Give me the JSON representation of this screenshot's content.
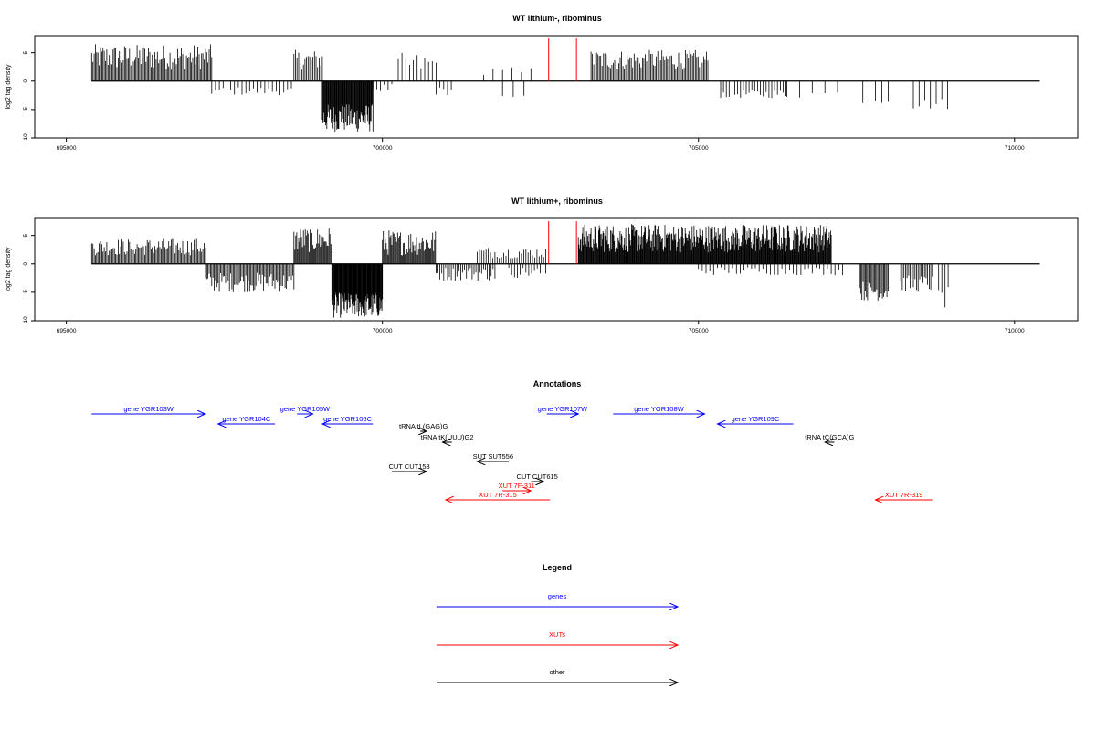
{
  "chart_data": [
    {
      "type": "bar",
      "title": "WT lithium-, ribominus",
      "ylabel": "log2 tag density",
      "xlim": [
        694500,
        711000
      ],
      "ylim": [
        -10,
        8
      ],
      "x_ticks": [
        695000,
        700000,
        705000,
        710000
      ],
      "y_ticks": [
        5,
        0,
        -5,
        -10
      ],
      "baseline": {
        "from": 695400,
        "to": 710400
      },
      "red_marks": [
        {
          "x": 702630,
          "top": 7.5
        },
        {
          "x": 703070,
          "top": 7.5
        }
      ],
      "density_segments": [
        {
          "from": 695400,
          "to": 697300,
          "min": 2,
          "max": 6.5,
          "step": 20
        },
        {
          "from": 697300,
          "to": 698600,
          "min": -2.5,
          "max": -1,
          "step": 60
        },
        {
          "from": 698600,
          "to": 699050,
          "min": 2,
          "max": 5.5,
          "step": 25
        },
        {
          "from": 699050,
          "to": 699850,
          "min": -9,
          "max": -4,
          "step": 10
        },
        {
          "from": 699850,
          "to": 700200,
          "min": -2,
          "max": -0.5,
          "step": 60
        },
        {
          "from": 700250,
          "to": 700850,
          "min": 1,
          "max": 5,
          "step": 60
        },
        {
          "from": 700850,
          "to": 701100,
          "min": -2.5,
          "max": -1,
          "step": 60
        },
        {
          "from": 701600,
          "to": 702400,
          "min": 0.5,
          "max": 2.5,
          "step": 150
        },
        {
          "from": 701900,
          "to": 702400,
          "min": -3,
          "max": -1,
          "step": 170
        },
        {
          "from": 703300,
          "to": 705150,
          "min": 2,
          "max": 5.5,
          "step": 22
        },
        {
          "from": 705350,
          "to": 706400,
          "min": -3,
          "max": -1.5,
          "step": 45
        },
        {
          "from": 706400,
          "to": 707200,
          "min": -3,
          "max": -1.5,
          "step": 200
        },
        {
          "from": 707600,
          "to": 708000,
          "min": -4,
          "max": -2,
          "step": 100
        },
        {
          "from": 708400,
          "to": 708950,
          "min": -5,
          "max": -3,
          "step": 90
        }
      ]
    },
    {
      "type": "bar",
      "title": "WT lithium+, ribominus",
      "ylabel": "log2 tag density",
      "xlim": [
        694500,
        711000
      ],
      "ylim": [
        -10,
        8
      ],
      "x_ticks": [
        695000,
        700000,
        705000,
        710000
      ],
      "y_ticks": [
        5,
        0,
        -5,
        -10
      ],
      "baseline": {
        "from": 695400,
        "to": 710400
      },
      "red_marks": [
        {
          "x": 702630,
          "top": 7.5
        },
        {
          "x": 703070,
          "top": 7.5
        }
      ],
      "density_segments": [
        {
          "from": 695400,
          "to": 697200,
          "min": 1.5,
          "max": 4.5,
          "step": 20
        },
        {
          "from": 697200,
          "to": 698600,
          "min": -5,
          "max": -1.5,
          "step": 20
        },
        {
          "from": 698600,
          "to": 699200,
          "min": 2,
          "max": 6.5,
          "step": 15
        },
        {
          "from": 699200,
          "to": 700000,
          "min": -9.5,
          "max": -5,
          "step": 8
        },
        {
          "from": 700000,
          "to": 700850,
          "min": 1.5,
          "max": 6,
          "step": 15
        },
        {
          "from": 700850,
          "to": 701800,
          "min": -3,
          "max": -0.5,
          "step": 30
        },
        {
          "from": 701500,
          "to": 702600,
          "min": 1,
          "max": 3,
          "step": 35
        },
        {
          "from": 702000,
          "to": 702600,
          "min": -2.5,
          "max": -0.5,
          "step": 45
        },
        {
          "from": 703100,
          "to": 707100,
          "min": 2,
          "max": 7,
          "step": 10
        },
        {
          "from": 705000,
          "to": 707300,
          "min": -2,
          "max": -0.5,
          "step": 60
        },
        {
          "from": 707550,
          "to": 708000,
          "min": -6.5,
          "max": -3,
          "step": 18
        },
        {
          "from": 708200,
          "to": 708700,
          "min": -5,
          "max": -2,
          "step": 25
        },
        {
          "from": 708800,
          "to": 708950,
          "min": -8,
          "max": -4,
          "step": 50
        }
      ]
    }
  ],
  "annotations": {
    "title": "Annotations",
    "colors": {
      "genes": "#0000ff",
      "xuts": "#ff0000",
      "other": "#000000"
    },
    "features": [
      {
        "label": "gene YGR103W",
        "kind": "genes",
        "strand": "+",
        "start": 695400,
        "end": 697200,
        "row": 0
      },
      {
        "label": "gene YGR104C",
        "kind": "genes",
        "strand": "-",
        "start": 697400,
        "end": 698300,
        "row": 1
      },
      {
        "label": "gene YGR105W",
        "kind": "genes",
        "strand": "+",
        "start": 698650,
        "end": 698900,
        "row": 0
      },
      {
        "label": "gene YGR106C",
        "kind": "genes",
        "strand": "-",
        "start": 699050,
        "end": 699850,
        "row": 1
      },
      {
        "label": "tRNA tL(GAG)G",
        "kind": "other",
        "strand": "+",
        "start": 700600,
        "end": 700700,
        "row": 2
      },
      {
        "label": "tRNA tK(UUU)G2",
        "kind": "other",
        "strand": "-",
        "start": 700950,
        "end": 701100,
        "row": 3
      },
      {
        "label": "SUT SUT556",
        "kind": "other",
        "strand": "-",
        "start": 701500,
        "end": 702000,
        "row": 4
      },
      {
        "label": "CUT CUT153",
        "kind": "other",
        "strand": "+",
        "start": 700150,
        "end": 700700,
        "row": 5
      },
      {
        "label": "CUT CUT615",
        "kind": "other",
        "strand": "+",
        "start": 702350,
        "end": 702550,
        "row": 6
      },
      {
        "label": "XUT 7F-311",
        "kind": "xuts",
        "strand": "+",
        "start": 701900,
        "end": 702350,
        "row": 7
      },
      {
        "label": "XUT 7R-315",
        "kind": "xuts",
        "strand": "-",
        "start": 701000,
        "end": 702650,
        "row": 8
      },
      {
        "label": "gene YGR107W",
        "kind": "genes",
        "strand": "+",
        "start": 702600,
        "end": 703100,
        "row": 0
      },
      {
        "label": "gene YGR108W",
        "kind": "genes",
        "strand": "+",
        "start": 703650,
        "end": 705100,
        "row": 0
      },
      {
        "label": "gene YGR109C",
        "kind": "genes",
        "strand": "-",
        "start": 705300,
        "end": 706500,
        "row": 1
      },
      {
        "label": "tRNA tC(GCA)G",
        "kind": "other",
        "strand": "-",
        "start": 707000,
        "end": 707150,
        "row": 3
      },
      {
        "label": "XUT 7R-319",
        "kind": "xuts",
        "strand": "-",
        "start": 707800,
        "end": 708700,
        "row": 8
      }
    ]
  },
  "legend": {
    "title": "Legend",
    "items": [
      {
        "label": "genes",
        "color": "#0000ff"
      },
      {
        "label": "XUTs",
        "color": "#ff0000"
      },
      {
        "label": "other",
        "color": "#000000"
      }
    ]
  }
}
